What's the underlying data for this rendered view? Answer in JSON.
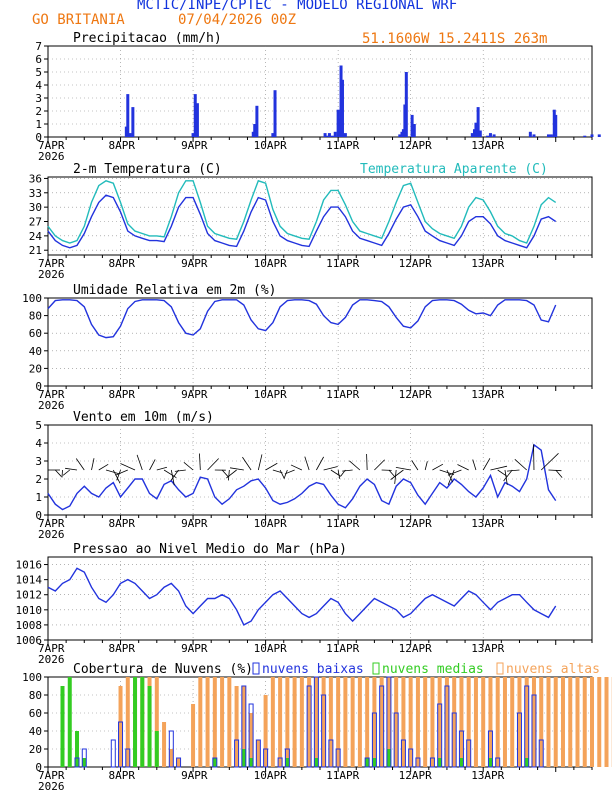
{
  "header": {
    "line1": "MCTIC/INPE/CPTEC - MODELO REGIONAL WRF",
    "location": "GO BRITANIA",
    "run": "07/04/2026 00Z",
    "coords": "51.1606W 15.2411S 263m"
  },
  "colors": {
    "blue": "#2233dd",
    "cyan": "#22bbbb",
    "green": "#33cc22",
    "orange": "#f4a35a",
    "title_blue": "#1133dd",
    "orange_text": "#ee7711"
  },
  "day_labels": [
    "7APR",
    "8APR",
    "9APR",
    "10APR",
    "11APR",
    "12APR",
    "13APR"
  ],
  "year_label": "2026",
  "chart_data": [
    {
      "type": "bar",
      "title": "Precipitacao (mm/h)",
      "ylim": [
        0,
        7
      ],
      "yticks": [
        0,
        1,
        2,
        3,
        4,
        5,
        6,
        7
      ],
      "x": [
        1.08,
        1.1,
        1.13,
        1.17,
        2.0,
        2.03,
        2.06,
        2.83,
        2.85,
        2.88,
        3.1,
        3.13,
        3.82,
        3.85,
        3.88,
        3.92,
        3.96,
        4.0,
        4.02,
        4.04,
        4.06,
        4.1,
        4.85,
        4.88,
        4.9,
        4.92,
        4.94,
        5.02,
        5.05,
        5.85,
        5.88,
        5.9,
        5.93,
        5.96,
        6.06,
        6.1,
        6.15,
        6.65,
        6.7,
        6.9,
        6.94,
        6.98,
        7.0,
        7.4,
        7.5,
        7.6
      ],
      "values": [
        0.8,
        3.3,
        0.3,
        2.3,
        0.3,
        3.3,
        2.6,
        0.4,
        1.0,
        2.4,
        0.3,
        3.6,
        0.3,
        0.1,
        0.3,
        0.1,
        0.4,
        2.1,
        1.4,
        5.5,
        4.4,
        0.3,
        0.2,
        0.4,
        0.6,
        2.5,
        5.0,
        1.7,
        1.0,
        0.3,
        0.6,
        1.1,
        2.3,
        0.5,
        0.1,
        0.3,
        0.2,
        0.4,
        0.2,
        0.2,
        0.2,
        2.1,
        1.7,
        0.1,
        0.2,
        0.2
      ]
    },
    {
      "type": "line",
      "title": "2-m Temperatura (C)",
      "ylim": [
        20,
        36.3
      ],
      "yticks": [
        21,
        24,
        27,
        30,
        33,
        36
      ],
      "series": [
        {
          "name": "2-m Temperatura (C)",
          "x": [
            0,
            0.1,
            0.2,
            0.3,
            0.4,
            0.5,
            0.6,
            0.7,
            0.8,
            0.9,
            1.0,
            1.1,
            1.2,
            1.3,
            1.4,
            1.5,
            1.6,
            1.7,
            1.8,
            1.9,
            2.0,
            2.1,
            2.2,
            2.3,
            2.4,
            2.5,
            2.6,
            2.7,
            2.8,
            2.9,
            3.0,
            3.1,
            3.2,
            3.3,
            3.4,
            3.5,
            3.6,
            3.7,
            3.8,
            3.9,
            4.0,
            4.1,
            4.2,
            4.3,
            4.4,
            4.5,
            4.6,
            4.7,
            4.8,
            4.9,
            5.0,
            5.1,
            5.2,
            5.3,
            5.4,
            5.5,
            5.6,
            5.7,
            5.8,
            5.9,
            6.0,
            6.1,
            6.2,
            6.3,
            6.4,
            6.5,
            6.6,
            6.7,
            6.8,
            6.9,
            7.0
          ],
          "values": [
            25,
            23,
            22,
            21.5,
            22,
            24.5,
            28,
            31,
            32.5,
            32,
            29,
            25,
            24,
            23.5,
            23,
            23,
            22.8,
            26,
            30,
            32,
            32,
            28.5,
            24.5,
            23,
            22.5,
            22,
            21.8,
            25,
            29,
            32,
            31.5,
            27,
            24,
            23,
            22.5,
            22,
            21.8,
            25,
            28,
            30,
            30,
            28,
            25,
            23.5,
            23,
            22.5,
            22,
            24.5,
            27.5,
            30,
            30.5,
            28,
            25,
            24,
            23,
            22.5,
            22,
            24,
            27,
            28,
            28,
            26.5,
            24,
            23,
            22.5,
            22,
            21.5,
            24,
            27.5,
            28,
            27
          ]
        },
        {
          "name": "Temperatura Aparente (C)",
          "x": [
            0,
            0.1,
            0.2,
            0.3,
            0.4,
            0.5,
            0.6,
            0.7,
            0.8,
            0.9,
            1.0,
            1.1,
            1.2,
            1.3,
            1.4,
            1.5,
            1.6,
            1.7,
            1.8,
            1.9,
            2.0,
            2.1,
            2.2,
            2.3,
            2.4,
            2.5,
            2.6,
            2.7,
            2.8,
            2.9,
            3.0,
            3.1,
            3.2,
            3.3,
            3.4,
            3.5,
            3.6,
            3.7,
            3.8,
            3.9,
            4.0,
            4.1,
            4.2,
            4.3,
            4.4,
            4.5,
            4.6,
            4.7,
            4.8,
            4.9,
            5.0,
            5.1,
            5.2,
            5.3,
            5.4,
            5.5,
            5.6,
            5.7,
            5.8,
            5.9,
            6.0,
            6.1,
            6.2,
            6.3,
            6.4,
            6.5,
            6.6,
            6.7,
            6.8,
            6.9,
            7.0
          ],
          "values": [
            26,
            24,
            23,
            22.5,
            23,
            26,
            31,
            34.5,
            35.5,
            35,
            31,
            26.5,
            25,
            24.5,
            24,
            24,
            23.8,
            28,
            33,
            35.5,
            35.5,
            31,
            26,
            24.5,
            24,
            23.5,
            23.3,
            27,
            31.5,
            35.5,
            35,
            29.5,
            26,
            24.5,
            24,
            23.5,
            23.3,
            27,
            31.5,
            33.5,
            33.5,
            30.5,
            27,
            25,
            24.5,
            24,
            23.5,
            27,
            31,
            34.5,
            35,
            31,
            27,
            25.5,
            24.5,
            24,
            23.5,
            26,
            30,
            32,
            31.5,
            29,
            26,
            24.5,
            24,
            23,
            22.5,
            26,
            30.5,
            32,
            31
          ]
        }
      ]
    },
    {
      "type": "line",
      "title": "Umidade Relativa em 2m (%)",
      "ylim": [
        0,
        100
      ],
      "yticks": [
        0,
        20,
        40,
        60,
        80,
        100
      ],
      "x": [
        0,
        0.1,
        0.2,
        0.3,
        0.4,
        0.5,
        0.6,
        0.7,
        0.8,
        0.9,
        1.0,
        1.1,
        1.2,
        1.3,
        1.4,
        1.5,
        1.6,
        1.7,
        1.8,
        1.9,
        2.0,
        2.1,
        2.2,
        2.3,
        2.4,
        2.5,
        2.6,
        2.7,
        2.8,
        2.9,
        3.0,
        3.1,
        3.2,
        3.3,
        3.4,
        3.5,
        3.6,
        3.7,
        3.8,
        3.9,
        4.0,
        4.1,
        4.2,
        4.3,
        4.4,
        4.5,
        4.6,
        4.7,
        4.8,
        4.9,
        5.0,
        5.1,
        5.2,
        5.3,
        5.4,
        5.5,
        5.6,
        5.7,
        5.8,
        5.9,
        6.0,
        6.1,
        6.2,
        6.3,
        6.4,
        6.5,
        6.6,
        6.7,
        6.8,
        6.9,
        7.0
      ],
      "values": [
        88,
        97,
        98,
        98,
        97,
        90,
        70,
        58,
        55,
        56,
        68,
        88,
        96,
        98,
        98,
        98,
        97,
        90,
        72,
        60,
        58,
        65,
        85,
        96,
        98,
        98,
        98,
        92,
        75,
        65,
        63,
        72,
        90,
        97,
        98,
        98,
        97,
        93,
        80,
        72,
        70,
        78,
        92,
        98,
        98,
        97,
        96,
        90,
        78,
        68,
        66,
        74,
        90,
        97,
        98,
        98,
        97,
        93,
        86,
        82,
        83,
        80,
        92,
        98,
        98,
        98,
        97,
        92,
        75,
        73,
        92
      ]
    },
    {
      "type": "line",
      "title": "Vento em 10m (m/s)",
      "ylim": [
        0,
        5
      ],
      "yticks": [
        0,
        1,
        2,
        3,
        4,
        5
      ],
      "x": [
        0,
        0.1,
        0.2,
        0.3,
        0.4,
        0.5,
        0.6,
        0.7,
        0.8,
        0.9,
        1.0,
        1.1,
        1.2,
        1.3,
        1.4,
        1.5,
        1.6,
        1.7,
        1.8,
        1.9,
        2.0,
        2.1,
        2.2,
        2.3,
        2.4,
        2.5,
        2.6,
        2.7,
        2.8,
        2.9,
        3.0,
        3.1,
        3.2,
        3.3,
        3.4,
        3.5,
        3.6,
        3.7,
        3.8,
        3.9,
        4.0,
        4.1,
        4.2,
        4.3,
        4.4,
        4.5,
        4.6,
        4.7,
        4.8,
        4.9,
        5.0,
        5.1,
        5.2,
        5.3,
        5.4,
        5.5,
        5.6,
        5.7,
        5.8,
        5.9,
        6.0,
        6.1,
        6.2,
        6.3,
        6.4,
        6.5,
        6.6,
        6.7,
        6.8,
        6.9,
        7.0
      ],
      "values": [
        1.2,
        0.6,
        0.3,
        0.5,
        1.2,
        1.6,
        1.2,
        1.0,
        1.5,
        1.8,
        1.0,
        1.5,
        2.0,
        2.0,
        1.2,
        0.9,
        1.7,
        1.9,
        1.4,
        1.0,
        1.2,
        2.1,
        2.0,
        1.0,
        0.6,
        0.9,
        1.4,
        1.6,
        1.9,
        2.0,
        1.5,
        0.8,
        0.6,
        0.7,
        0.9,
        1.2,
        1.6,
        1.8,
        1.7,
        1.1,
        0.6,
        0.4,
        0.9,
        1.6,
        2.0,
        1.7,
        0.8,
        0.6,
        1.6,
        2.0,
        1.8,
        1.1,
        0.6,
        1.2,
        1.8,
        1.5,
        2.0,
        1.7,
        1.3,
        1.0,
        1.5,
        2.2,
        1.0,
        1.8,
        1.6,
        1.3,
        2.0,
        3.9,
        3.6,
        1.4,
        0.8
      ]
    },
    {
      "type": "line",
      "title": "Pressao ao Nivel Medio do Mar (hPa)",
      "ylim": [
        1006,
        1017
      ],
      "yticks": [
        1006,
        1008,
        1010,
        1012,
        1014,
        1016
      ],
      "x": [
        0,
        0.1,
        0.2,
        0.3,
        0.4,
        0.5,
        0.6,
        0.7,
        0.8,
        0.9,
        1.0,
        1.1,
        1.2,
        1.3,
        1.4,
        1.5,
        1.6,
        1.7,
        1.8,
        1.9,
        2.0,
        2.1,
        2.2,
        2.3,
        2.4,
        2.5,
        2.6,
        2.7,
        2.8,
        2.9,
        3.0,
        3.1,
        3.2,
        3.3,
        3.4,
        3.5,
        3.6,
        3.7,
        3.8,
        3.9,
        4.0,
        4.1,
        4.2,
        4.3,
        4.4,
        4.5,
        4.6,
        4.7,
        4.8,
        4.9,
        5.0,
        5.1,
        5.2,
        5.3,
        5.4,
        5.5,
        5.6,
        5.7,
        5.8,
        5.9,
        6.0,
        6.1,
        6.2,
        6.3,
        6.4,
        6.5,
        6.6,
        6.7,
        6.8,
        6.9,
        7.0
      ],
      "values": [
        1013.0,
        1012.5,
        1013.5,
        1014.0,
        1015.5,
        1015.0,
        1013.0,
        1011.5,
        1011.0,
        1012.0,
        1013.5,
        1014.0,
        1013.5,
        1012.5,
        1011.5,
        1012.0,
        1013.0,
        1013.5,
        1012.5,
        1010.5,
        1009.5,
        1010.5,
        1011.5,
        1011.5,
        1012.0,
        1011.5,
        1010.0,
        1008.0,
        1008.5,
        1010.0,
        1011.0,
        1012.0,
        1012.5,
        1011.5,
        1010.5,
        1009.5,
        1009.0,
        1009.5,
        1010.5,
        1011.5,
        1011.0,
        1009.5,
        1008.5,
        1009.5,
        1010.5,
        1011.5,
        1011.0,
        1010.5,
        1010.0,
        1009.0,
        1009.5,
        1010.5,
        1011.5,
        1012.0,
        1011.5,
        1011.0,
        1010.5,
        1011.5,
        1012.5,
        1012.0,
        1011.0,
        1010.0,
        1011.0,
        1011.5,
        1012.0,
        1012.0,
        1011.0,
        1010.0,
        1009.5,
        1009.0,
        1010.5
      ]
    },
    {
      "type": "bar",
      "title": "Cobertura de Nuvens (%)",
      "ylim": [
        0,
        100
      ],
      "yticks": [
        0,
        20,
        40,
        60,
        80,
        100
      ],
      "legend": [
        "nuvens baixas",
        "nuvens medias",
        "nuvens altas"
      ],
      "x": [
        0.1,
        0.2,
        0.3,
        0.4,
        0.5,
        0.6,
        0.7,
        0.8,
        0.9,
        1.0,
        1.1,
        1.2,
        1.3,
        1.4,
        1.5,
        1.6,
        1.7,
        1.8,
        1.9,
        2.0,
        2.1,
        2.2,
        2.3,
        2.4,
        2.5,
        2.6,
        2.7,
        2.8,
        2.9,
        3.0,
        3.1,
        3.2,
        3.3,
        3.4,
        3.5,
        3.6,
        3.7,
        3.8,
        3.9,
        4.0,
        4.1,
        4.2,
        4.3,
        4.4,
        4.5,
        4.6,
        4.7,
        4.8,
        4.9,
        5.0,
        5.1,
        5.2,
        5.3,
        5.4,
        5.5,
        5.6,
        5.7,
        5.8,
        5.9,
        6.0,
        6.1,
        6.2,
        6.3,
        6.4,
        6.5,
        6.6,
        6.7,
        6.8,
        6.9,
        7.0,
        7.1,
        7.2,
        7.3,
        7.4,
        7.5,
        7.6,
        7.7,
        7.8,
        7.9
      ],
      "series": [
        {
          "name": "nuvens baixas",
          "values": [
            0,
            0,
            0,
            10,
            20,
            0,
            0,
            0,
            30,
            50,
            20,
            0,
            0,
            0,
            0,
            0,
            40,
            10,
            0,
            0,
            0,
            0,
            10,
            0,
            0,
            30,
            90,
            70,
            30,
            20,
            0,
            10,
            20,
            0,
            0,
            90,
            100,
            80,
            30,
            20,
            0,
            0,
            0,
            10,
            60,
            90,
            100,
            60,
            30,
            20,
            10,
            0,
            10,
            70,
            90,
            60,
            40,
            30,
            0,
            0,
            40,
            10,
            0,
            0,
            60,
            90,
            80,
            30,
            0,
            0,
            0,
            0,
            0,
            0,
            0,
            0,
            0,
            0,
            0
          ]
        },
        {
          "name": "nuvens medias",
          "values": [
            0,
            90,
            100,
            40,
            10,
            0,
            0,
            0,
            0,
            0,
            0,
            100,
            100,
            90,
            40,
            0,
            0,
            0,
            0,
            0,
            0,
            0,
            10,
            0,
            0,
            0,
            20,
            10,
            0,
            0,
            0,
            0,
            10,
            0,
            0,
            0,
            10,
            0,
            0,
            0,
            0,
            0,
            0,
            10,
            10,
            0,
            20,
            0,
            0,
            0,
            0,
            0,
            0,
            10,
            0,
            0,
            10,
            0,
            0,
            0,
            10,
            0,
            0,
            0,
            0,
            10,
            0,
            0,
            0,
            0,
            0,
            0,
            0,
            0,
            0,
            0,
            0,
            0,
            0
          ]
        },
        {
          "name": "nuvens altas",
          "values": [
            0,
            0,
            0,
            0,
            0,
            0,
            0,
            0,
            0,
            90,
            100,
            100,
            100,
            100,
            100,
            50,
            20,
            10,
            0,
            70,
            100,
            100,
            100,
            100,
            100,
            90,
            90,
            60,
            30,
            80,
            100,
            100,
            100,
            100,
            100,
            100,
            100,
            100,
            100,
            100,
            100,
            100,
            100,
            100,
            100,
            100,
            100,
            100,
            100,
            100,
            100,
            100,
            100,
            100,
            100,
            100,
            100,
            100,
            100,
            100,
            100,
            100,
            100,
            100,
            100,
            100,
            100,
            100,
            100,
            100,
            100,
            100,
            100,
            100,
            100,
            100,
            100,
            100,
            100
          ]
        }
      ]
    }
  ]
}
